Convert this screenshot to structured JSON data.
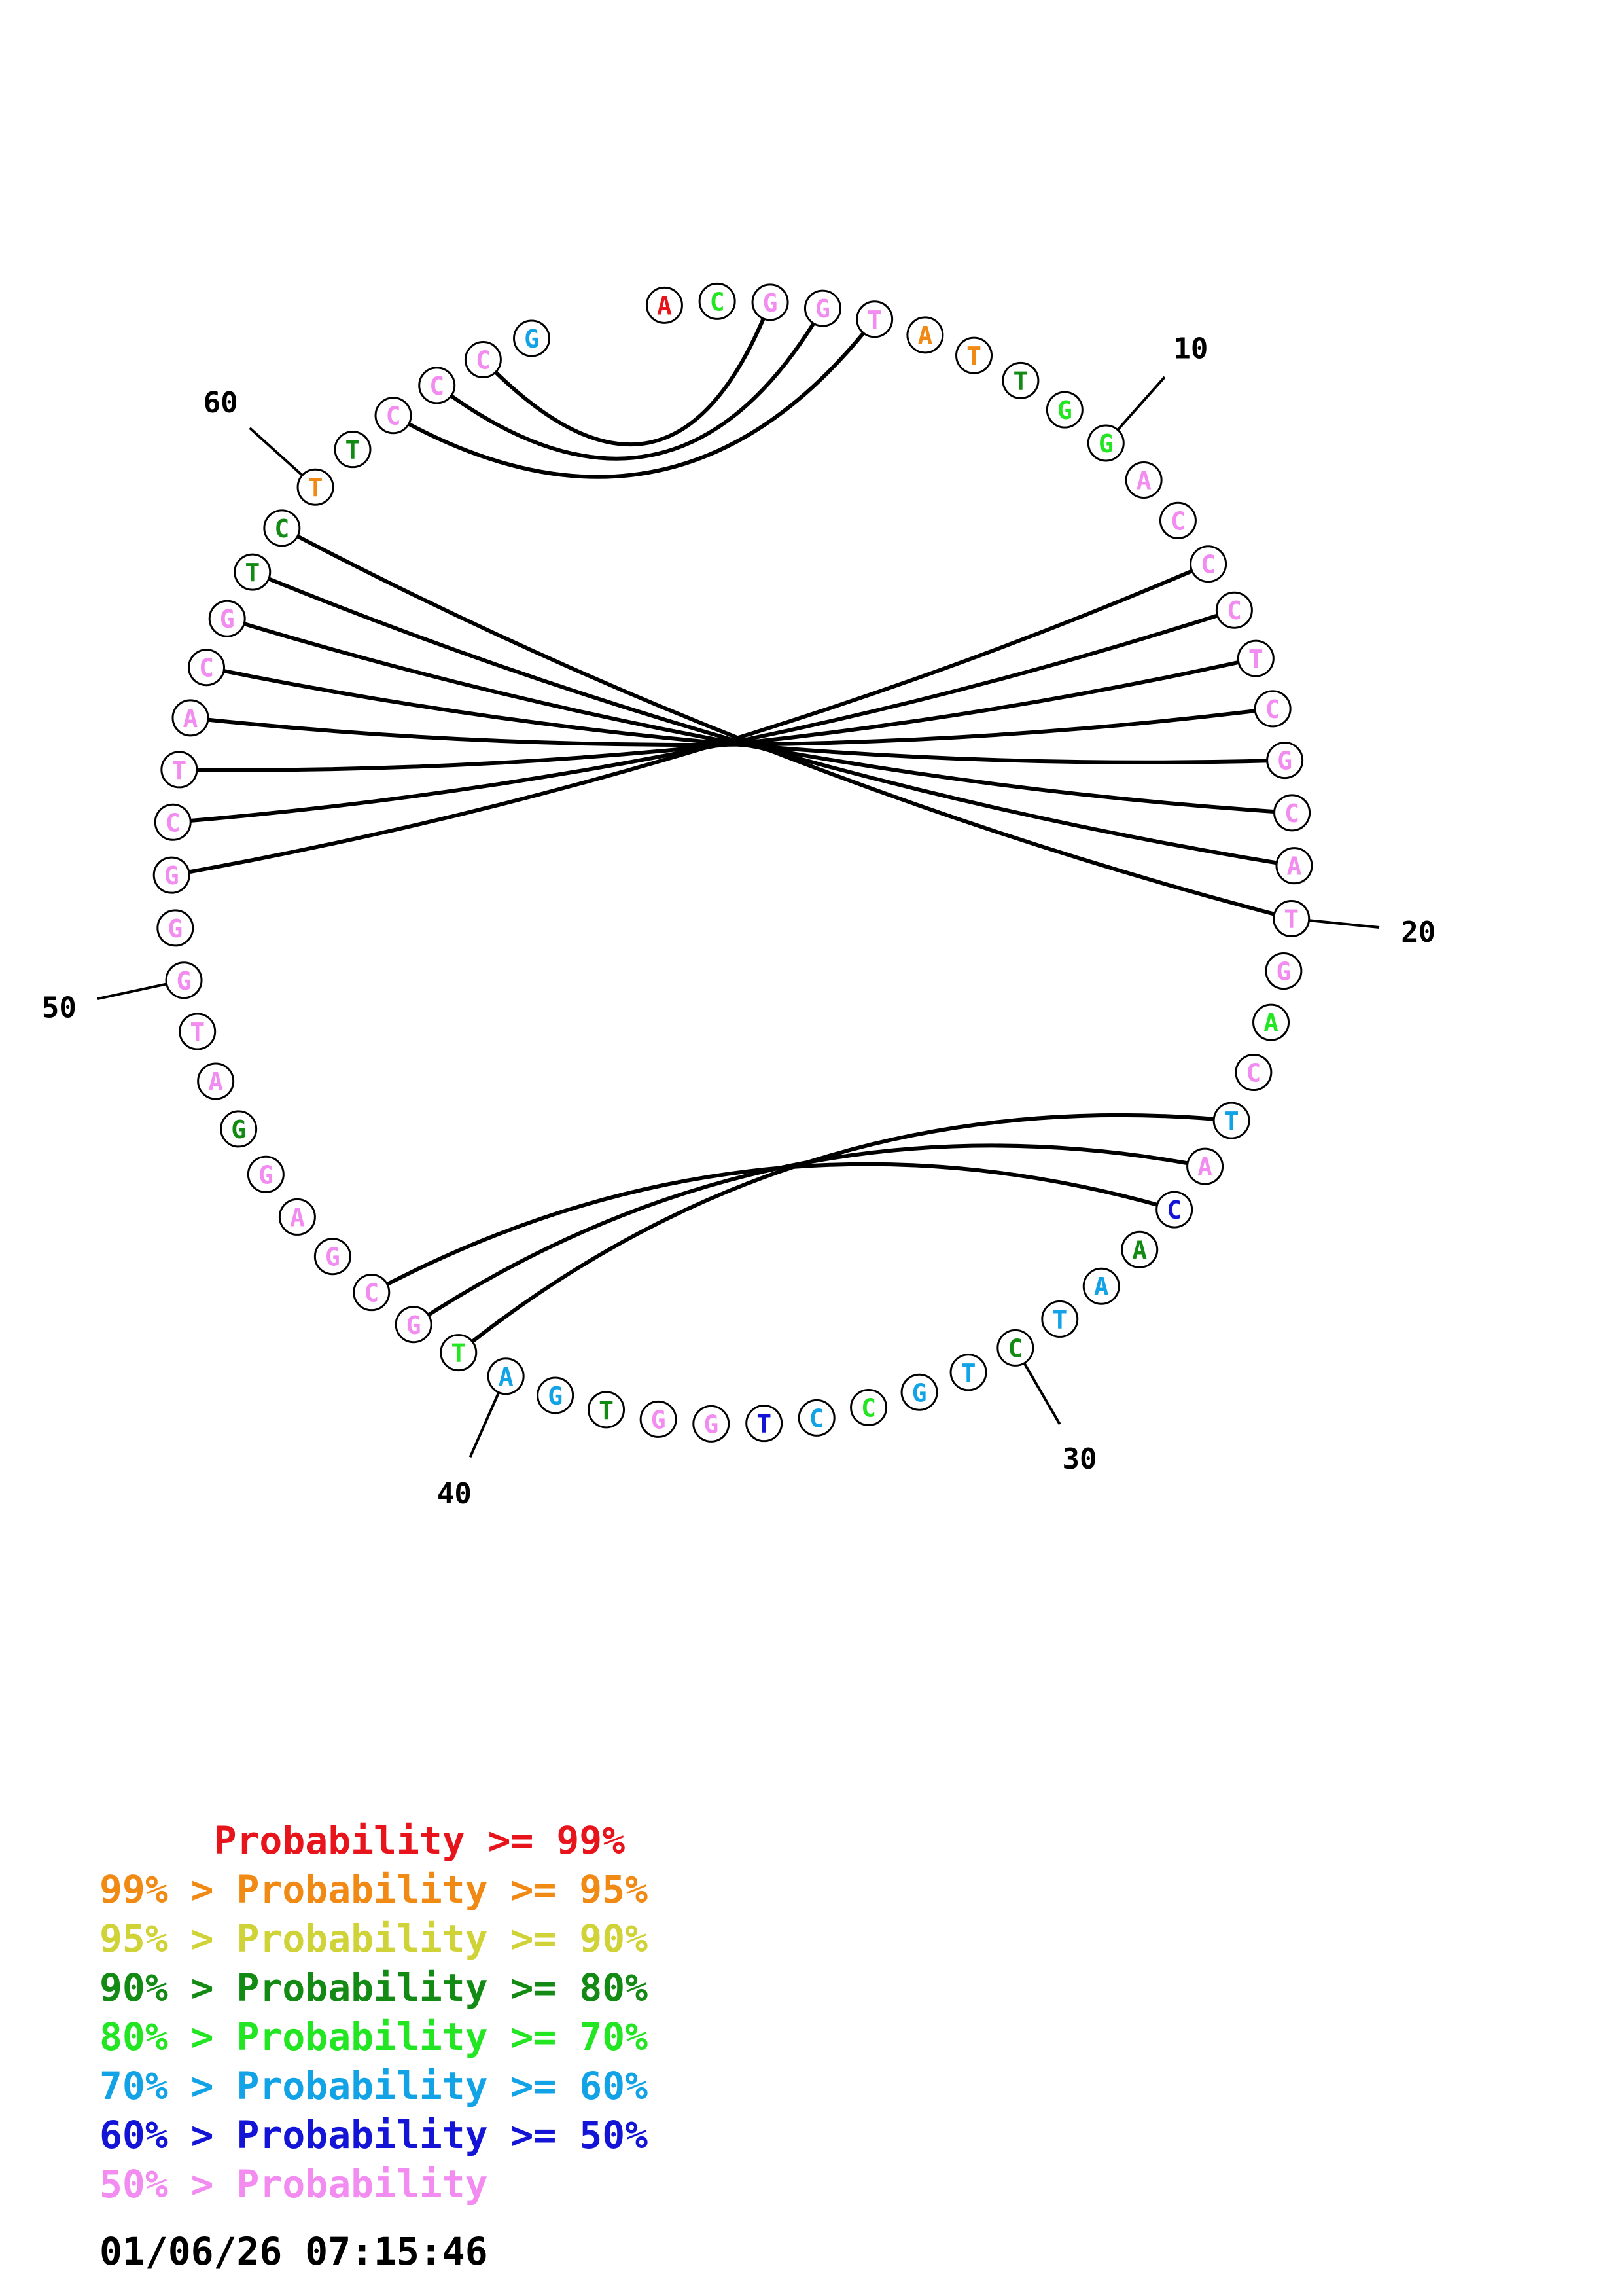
{
  "sequence": "ACGGTATTGGACCCTCGCATGACTACAATCTGCCTGGTGATGCGAGGATGGGCTACGTCTTCCCG",
  "nucleotide_colors": [
    "red",
    "green",
    "pink",
    "pink",
    "pink",
    "orange",
    "orange",
    "dkgreen",
    "green",
    "green",
    "pink",
    "pink",
    "pink",
    "pink",
    "pink",
    "pink",
    "pink",
    "pink",
    "pink",
    "pink",
    "pink",
    "green",
    "pink",
    "cyan",
    "pink",
    "blue",
    "dkgreen",
    "cyan",
    "cyan",
    "dkgreen",
    "cyan",
    "cyan",
    "green",
    "cyan",
    "blue",
    "pink",
    "pink",
    "dkgreen",
    "cyan",
    "cyan",
    "green",
    "pink",
    "pink",
    "pink",
    "pink",
    "pink",
    "dkgreen",
    "pink",
    "pink",
    "pink",
    "pink",
    "pink",
    "pink",
    "pink",
    "pink",
    "pink",
    "pink",
    "dkgreen",
    "dkgreen",
    "orange",
    "dkgreen",
    "pink",
    "pink",
    "pink",
    "cyan"
  ],
  "palette": {
    "red": "#e8141c",
    "orange": "#f08a14",
    "yellow": "#cfd338",
    "dkgreen": "#138a13",
    "green": "#22e622",
    "cyan": "#12a3e6",
    "blue": "#1414d6",
    "pink": "#f28cf0"
  },
  "pairs": [
    [
      3,
      64
    ],
    [
      4,
      63
    ],
    [
      5,
      62
    ],
    [
      13,
      52
    ],
    [
      14,
      53
    ],
    [
      15,
      54
    ],
    [
      16,
      55
    ],
    [
      17,
      56
    ],
    [
      18,
      57
    ],
    [
      19,
      58
    ],
    [
      20,
      59
    ],
    [
      24,
      41
    ],
    [
      25,
      42
    ],
    [
      26,
      43
    ]
  ],
  "position_labels": [
    {
      "index": 10,
      "text": "10"
    },
    {
      "index": 20,
      "text": "20"
    },
    {
      "index": 30,
      "text": "30"
    },
    {
      "index": 40,
      "text": "40"
    },
    {
      "index": 50,
      "text": "50"
    },
    {
      "index": 60,
      "text": "60"
    }
  ],
  "legend": [
    {
      "text": "     Probability >= 99%",
      "color": "#e8141c"
    },
    {
      "text": "99% > Probability >= 95%",
      "color": "#f08a14"
    },
    {
      "text": "95% > Probability >= 90%",
      "color": "#cfd338"
    },
    {
      "text": "90% > Probability >= 80%",
      "color": "#138a13"
    },
    {
      "text": "80% > Probability >= 70%",
      "color": "#22e622"
    },
    {
      "text": "70% > Probability >= 60%",
      "color": "#12a3e6"
    },
    {
      "text": "60% > Probability >= 50%",
      "color": "#1414d6"
    },
    {
      "text": "50% > Probability",
      "color": "#f28cf0"
    }
  ],
  "timestamp": "01/06/26 07:15:46"
}
